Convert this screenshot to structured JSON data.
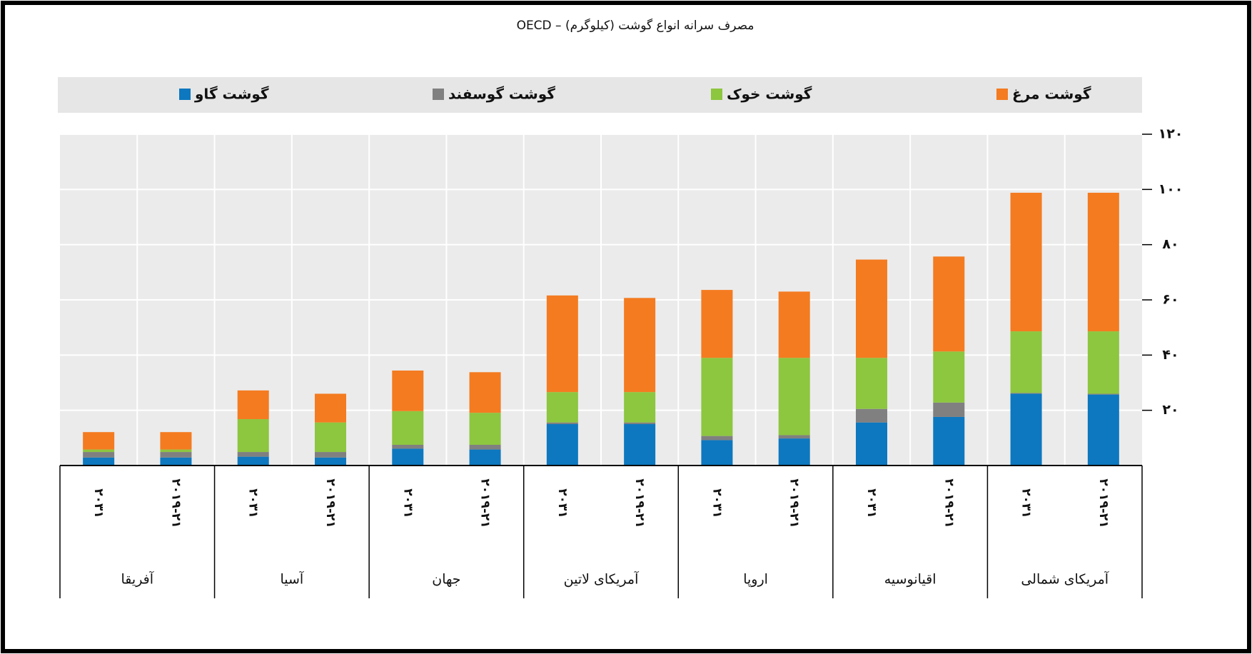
{
  "chart_data": {
    "type": "stacked_bar",
    "title": "مصرف سرانه انواع گوشت (کیلوگرم) – OECD",
    "categories": [
      "۲۰۳۱",
      "۲۰۱۹-۲۱",
      "۲۰۳۱",
      "۲۰۱۹-۲۱",
      "۲۰۳۱",
      "۲۰۱۹-۲۱",
      "۲۰۳۱",
      "۲۰۱۹-۲۱",
      "۲۰۳۱",
      "۲۰۱۹-۲۱",
      "۲۰۳۱",
      "۲۰۱۹-۲۱",
      "۲۰۳۱",
      "۲۰۱۹-۲۱"
    ],
    "groups": [
      "آفریقا",
      "آسیا",
      "جهان",
      "آمریکای لاتین",
      "اروپا",
      "اقیانوسیه",
      "آمریکای شمالی"
    ],
    "series": [
      {
        "name": "گوشت گاو",
        "color": "#0d78bf",
        "values": [
          2.9,
          2.9,
          3.2,
          2.9,
          6.1,
          5.8,
          15.0,
          15.0,
          9.2,
          9.8,
          15.6,
          17.6,
          26.0,
          25.7
        ]
      },
      {
        "name": "گوشت گوسفند",
        "color": "#808080",
        "values": [
          2.0,
          2.0,
          1.7,
          2.0,
          1.4,
          1.7,
          0.6,
          0.6,
          1.5,
          1.2,
          4.9,
          5.2,
          0.3,
          0.3
        ]
      },
      {
        "name": "گوشت خوک",
        "color": "#8dc63f",
        "values": [
          0.9,
          0.9,
          11.9,
          10.7,
          12.2,
          11.6,
          11.0,
          11.0,
          28.3,
          28.0,
          18.5,
          18.5,
          22.3,
          22.6
        ]
      },
      {
        "name": "گوشت مرغ",
        "color": "#f47b20",
        "values": [
          6.3,
          6.3,
          10.4,
          10.4,
          14.7,
          14.7,
          35.0,
          34.1,
          24.6,
          24.0,
          35.6,
          34.4,
          50.2,
          50.2
        ]
      }
    ],
    "ylim": [
      0,
      120
    ],
    "yticks": [
      {
        "value": 20,
        "label": "۲۰"
      },
      {
        "value": 40,
        "label": "۴۰"
      },
      {
        "value": 60,
        "label": "۶۰"
      },
      {
        "value": 80,
        "label": "۸۰"
      },
      {
        "value": 100,
        "label": "۱۰۰"
      },
      {
        "value": 120,
        "label": "۱۲۰"
      }
    ],
    "grid": true
  }
}
